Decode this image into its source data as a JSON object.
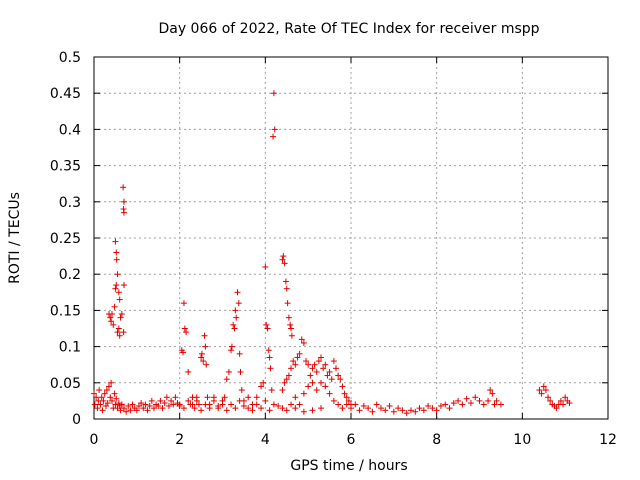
{
  "chart_data": {
    "type": "scatter",
    "title": "Day 066 of 2022, Rate Of TEC Index for receiver mspp",
    "xlabel": "GPS time / hours",
    "ylabel": "ROTI / TECUs",
    "xlim": [
      0,
      12
    ],
    "ylim": [
      0,
      0.5
    ],
    "xticks": [
      "0",
      "2",
      "4",
      "6",
      "8",
      "10",
      "12"
    ],
    "yticks": [
      "0",
      "0.05",
      "0.1",
      "0.15",
      "0.2",
      "0.25",
      "0.3",
      "0.35",
      "0.4",
      "0.45",
      "0.5"
    ],
    "grid": true,
    "marker": "+",
    "color": "#e00000",
    "series": [
      {
        "name": "ROTI",
        "points": [
          [
            0.0,
            0.035
          ],
          [
            0.02,
            0.02
          ],
          [
            0.05,
            0.03
          ],
          [
            0.08,
            0.015
          ],
          [
            0.1,
            0.025
          ],
          [
            0.12,
            0.04
          ],
          [
            0.15,
            0.02
          ],
          [
            0.18,
            0.03
          ],
          [
            0.2,
            0.012
          ],
          [
            0.22,
            0.025
          ],
          [
            0.25,
            0.035
          ],
          [
            0.28,
            0.018
          ],
          [
            0.3,
            0.04
          ],
          [
            0.32,
            0.022
          ],
          [
            0.35,
            0.045
          ],
          [
            0.38,
            0.03
          ],
          [
            0.4,
            0.05
          ],
          [
            0.42,
            0.025
          ],
          [
            0.45,
            0.015
          ],
          [
            0.48,
            0.035
          ],
          [
            0.5,
            0.02
          ],
          [
            0.52,
            0.028
          ],
          [
            0.55,
            0.015
          ],
          [
            0.58,
            0.022
          ],
          [
            0.6,
            0.018
          ],
          [
            0.62,
            0.012
          ],
          [
            0.65,
            0.02
          ],
          [
            0.7,
            0.015
          ],
          [
            0.75,
            0.01
          ],
          [
            0.8,
            0.018
          ],
          [
            0.85,
            0.012
          ],
          [
            0.9,
            0.02
          ],
          [
            0.95,
            0.015
          ],
          [
            1.0,
            0.012
          ],
          [
            1.05,
            0.018
          ],
          [
            1.1,
            0.022
          ],
          [
            1.15,
            0.015
          ],
          [
            1.2,
            0.02
          ],
          [
            1.25,
            0.012
          ],
          [
            1.3,
            0.018
          ],
          [
            1.35,
            0.025
          ],
          [
            1.4,
            0.015
          ],
          [
            1.45,
            0.02
          ],
          [
            1.5,
            0.018
          ],
          [
            1.55,
            0.025
          ],
          [
            1.6,
            0.015
          ],
          [
            1.65,
            0.022
          ],
          [
            1.7,
            0.03
          ],
          [
            1.75,
            0.018
          ],
          [
            1.8,
            0.025
          ],
          [
            1.85,
            0.02
          ],
          [
            1.9,
            0.03
          ],
          [
            1.95,
            0.022
          ],
          [
            2.0,
            0.018
          ],
          [
            0.35,
            0.145
          ],
          [
            0.38,
            0.14
          ],
          [
            0.4,
            0.135
          ],
          [
            0.42,
            0.145
          ],
          [
            0.45,
            0.13
          ],
          [
            0.48,
            0.155
          ],
          [
            0.5,
            0.18
          ],
          [
            0.52,
            0.185
          ],
          [
            0.55,
            0.12
          ],
          [
            0.58,
            0.125
          ],
          [
            0.6,
            0.115
          ],
          [
            0.62,
            0.14
          ],
          [
            0.65,
            0.145
          ],
          [
            0.5,
            0.245
          ],
          [
            0.52,
            0.23
          ],
          [
            0.53,
            0.22
          ],
          [
            0.55,
            0.2
          ],
          [
            0.58,
            0.175
          ],
          [
            0.6,
            0.165
          ],
          [
            0.68,
            0.32
          ],
          [
            0.7,
            0.3
          ],
          [
            0.69,
            0.29
          ],
          [
            0.7,
            0.285
          ],
          [
            0.7,
            0.185
          ],
          [
            0.69,
            0.12
          ],
          [
            2.05,
            0.095
          ],
          [
            2.08,
            0.092
          ],
          [
            2.1,
            0.16
          ],
          [
            2.12,
            0.125
          ],
          [
            2.15,
            0.12
          ],
          [
            2.2,
            0.065
          ],
          [
            2.25,
            0.02
          ],
          [
            2.3,
            0.03
          ],
          [
            2.35,
            0.015
          ],
          [
            2.4,
            0.025
          ],
          [
            2.45,
            0.02
          ],
          [
            2.5,
            0.085
          ],
          [
            2.52,
            0.09
          ],
          [
            2.55,
            0.08
          ],
          [
            2.58,
            0.115
          ],
          [
            2.6,
            0.1
          ],
          [
            2.62,
            0.075
          ],
          [
            2.65,
            0.03
          ],
          [
            2.7,
            0.02
          ],
          [
            2.8,
            0.025
          ],
          [
            2.9,
            0.015
          ],
          [
            3.0,
            0.02
          ],
          [
            3.05,
            0.03
          ],
          [
            3.1,
            0.055
          ],
          [
            3.15,
            0.065
          ],
          [
            3.2,
            0.095
          ],
          [
            3.22,
            0.1
          ],
          [
            3.25,
            0.13
          ],
          [
            3.28,
            0.125
          ],
          [
            3.3,
            0.15
          ],
          [
            3.32,
            0.14
          ],
          [
            3.35,
            0.175
          ],
          [
            3.38,
            0.16
          ],
          [
            3.4,
            0.09
          ],
          [
            3.42,
            0.065
          ],
          [
            3.45,
            0.04
          ],
          [
            3.5,
            0.025
          ],
          [
            3.6,
            0.015
          ],
          [
            3.7,
            0.02
          ],
          [
            3.8,
            0.03
          ],
          [
            3.9,
            0.045
          ],
          [
            3.95,
            0.05
          ],
          [
            4.0,
            0.21
          ],
          [
            4.02,
            0.13
          ],
          [
            4.05,
            0.125
          ],
          [
            4.08,
            0.095
          ],
          [
            4.1,
            0.085
          ],
          [
            4.12,
            0.07
          ],
          [
            4.15,
            0.04
          ],
          [
            4.18,
            0.39
          ],
          [
            4.2,
            0.45
          ],
          [
            4.22,
            0.4
          ],
          [
            4.4,
            0.22
          ],
          [
            4.42,
            0.225
          ],
          [
            4.45,
            0.215
          ],
          [
            4.48,
            0.19
          ],
          [
            4.5,
            0.18
          ],
          [
            4.52,
            0.16
          ],
          [
            4.55,
            0.14
          ],
          [
            4.58,
            0.13
          ],
          [
            4.6,
            0.125
          ],
          [
            4.62,
            0.115
          ],
          [
            4.4,
            0.04
          ],
          [
            4.45,
            0.05
          ],
          [
            4.5,
            0.055
          ],
          [
            4.55,
            0.06
          ],
          [
            4.6,
            0.07
          ],
          [
            4.65,
            0.08
          ],
          [
            4.7,
            0.075
          ],
          [
            4.75,
            0.085
          ],
          [
            4.8,
            0.09
          ],
          [
            4.85,
            0.11
          ],
          [
            4.9,
            0.105
          ],
          [
            4.95,
            0.08
          ],
          [
            5.0,
            0.075
          ],
          [
            5.05,
            0.06
          ],
          [
            5.1,
            0.07
          ],
          [
            5.15,
            0.075
          ],
          [
            5.2,
            0.065
          ],
          [
            5.25,
            0.08
          ],
          [
            5.3,
            0.085
          ],
          [
            5.35,
            0.07
          ],
          [
            5.4,
            0.075
          ],
          [
            5.45,
            0.06
          ],
          [
            5.5,
            0.065
          ],
          [
            5.55,
            0.055
          ],
          [
            5.6,
            0.08
          ],
          [
            5.65,
            0.07
          ],
          [
            5.7,
            0.06
          ],
          [
            5.75,
            0.055
          ],
          [
            5.8,
            0.045
          ],
          [
            5.85,
            0.035
          ],
          [
            5.9,
            0.03
          ],
          [
            5.95,
            0.025
          ],
          [
            6.0,
            0.02
          ],
          [
            4.6,
            0.02
          ],
          [
            4.7,
            0.03
          ],
          [
            4.8,
            0.02
          ],
          [
            4.9,
            0.035
          ],
          [
            5.0,
            0.045
          ],
          [
            5.1,
            0.05
          ],
          [
            5.2,
            0.04
          ],
          [
            5.3,
            0.05
          ],
          [
            5.4,
            0.045
          ],
          [
            5.5,
            0.035
          ],
          [
            5.6,
            0.025
          ],
          [
            5.7,
            0.02
          ],
          [
            5.8,
            0.015
          ],
          [
            5.9,
            0.02
          ],
          [
            6.0,
            0.015
          ],
          [
            6.1,
            0.02
          ],
          [
            6.2,
            0.012
          ],
          [
            6.3,
            0.018
          ],
          [
            6.4,
            0.015
          ],
          [
            6.5,
            0.01
          ],
          [
            6.6,
            0.02
          ],
          [
            6.7,
            0.015
          ],
          [
            6.8,
            0.012
          ],
          [
            6.9,
            0.018
          ],
          [
            7.0,
            0.01
          ],
          [
            7.1,
            0.015
          ],
          [
            7.2,
            0.012
          ],
          [
            7.3,
            0.008
          ],
          [
            7.4,
            0.012
          ],
          [
            7.5,
            0.01
          ],
          [
            7.6,
            0.015
          ],
          [
            7.7,
            0.012
          ],
          [
            7.8,
            0.018
          ],
          [
            7.9,
            0.015
          ],
          [
            8.0,
            0.012
          ],
          [
            8.1,
            0.018
          ],
          [
            8.2,
            0.02
          ],
          [
            8.3,
            0.015
          ],
          [
            8.4,
            0.022
          ],
          [
            8.5,
            0.025
          ],
          [
            8.6,
            0.02
          ],
          [
            8.7,
            0.028
          ],
          [
            8.8,
            0.022
          ],
          [
            8.9,
            0.03
          ],
          [
            9.0,
            0.025
          ],
          [
            9.1,
            0.02
          ],
          [
            9.2,
            0.025
          ],
          [
            9.25,
            0.04
          ],
          [
            9.3,
            0.035
          ],
          [
            9.35,
            0.02
          ],
          [
            9.4,
            0.025
          ],
          [
            9.5,
            0.02
          ],
          [
            10.4,
            0.04
          ],
          [
            10.45,
            0.035
          ],
          [
            10.5,
            0.045
          ],
          [
            10.55,
            0.04
          ],
          [
            10.6,
            0.03
          ],
          [
            10.65,
            0.025
          ],
          [
            10.7,
            0.02
          ],
          [
            10.75,
            0.018
          ],
          [
            10.8,
            0.015
          ],
          [
            10.85,
            0.02
          ],
          [
            10.9,
            0.025
          ],
          [
            10.95,
            0.02
          ],
          [
            11.0,
            0.03
          ],
          [
            11.05,
            0.025
          ],
          [
            11.1,
            0.022
          ],
          [
            2.0,
            0.02
          ],
          [
            2.2,
            0.025
          ],
          [
            2.4,
            0.03
          ],
          [
            2.6,
            0.02
          ],
          [
            2.8,
            0.03
          ],
          [
            3.0,
            0.025
          ],
          [
            3.2,
            0.02
          ],
          [
            3.4,
            0.025
          ],
          [
            3.6,
            0.03
          ],
          [
            3.8,
            0.02
          ],
          [
            4.0,
            0.025
          ],
          [
            4.2,
            0.02
          ],
          [
            4.4,
            0.015
          ],
          [
            2.1,
            0.015
          ],
          [
            2.3,
            0.02
          ],
          [
            2.5,
            0.012
          ],
          [
            2.7,
            0.015
          ],
          [
            2.9,
            0.018
          ],
          [
            3.1,
            0.012
          ],
          [
            3.3,
            0.015
          ],
          [
            3.5,
            0.018
          ],
          [
            3.7,
            0.012
          ],
          [
            3.9,
            0.015
          ],
          [
            4.1,
            0.012
          ],
          [
            4.3,
            0.018
          ],
          [
            4.5,
            0.012
          ],
          [
            4.7,
            0.015
          ],
          [
            4.9,
            0.01
          ],
          [
            5.1,
            0.012
          ],
          [
            5.3,
            0.015
          ]
        ]
      }
    ]
  }
}
